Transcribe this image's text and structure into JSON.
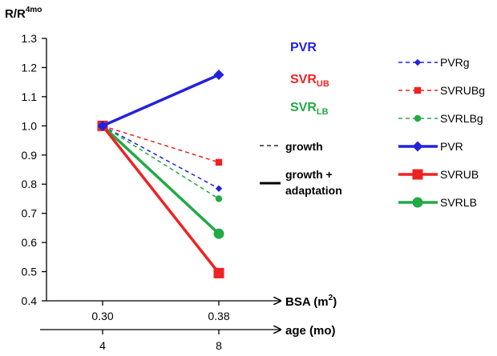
{
  "chart_data": {
    "type": "line",
    "ylabel": {
      "base": "R/R",
      "sup": "4mo"
    },
    "ylim": [
      0.4,
      1.3
    ],
    "yticks": [
      "0.4",
      "0.5",
      "0.6",
      "0.7",
      "0.8",
      "0.9",
      "1.0",
      "1.1",
      "1.2",
      "1.3"
    ],
    "x": [
      0.3,
      0.38
    ],
    "xticks": [
      "0.30",
      "0.38"
    ],
    "xlabel": {
      "base": "BSA (m",
      "sup": "2",
      "end": ")"
    },
    "x2ticks": [
      "4",
      "8"
    ],
    "x2label": "age (mo)",
    "series": [
      {
        "name": "PVRg",
        "values": [
          1.0,
          0.785
        ],
        "color": "#2222dd",
        "dashed": true,
        "marker": "diamond"
      },
      {
        "name": "SVRUBg",
        "values": [
          1.0,
          0.875
        ],
        "color": "#ee2222",
        "dashed": true,
        "marker": "square"
      },
      {
        "name": "SVRLBg",
        "values": [
          1.0,
          0.75
        ],
        "color": "#22aa44",
        "dashed": true,
        "marker": "circle"
      },
      {
        "name": "PVR",
        "values": [
          1.0,
          1.175
        ],
        "color": "#2222dd",
        "dashed": false,
        "marker": "diamond"
      },
      {
        "name": "SVRUB",
        "values": [
          1.0,
          0.495
        ],
        "color": "#ee2222",
        "dashed": false,
        "marker": "square"
      },
      {
        "name": "SVRLB",
        "values": [
          1.0,
          0.63
        ],
        "color": "#22aa44",
        "dashed": false,
        "marker": "circle"
      }
    ],
    "annotations": {
      "pvr": {
        "text": "PVR",
        "color": "#2222dd"
      },
      "svrub": {
        "base": "SVR",
        "sub": "UB",
        "color": "#ee2222"
      },
      "svrlb": {
        "base": "SVR",
        "sub": "LB",
        "color": "#22aa44"
      },
      "growth": "growth",
      "growth_adapt_1": "growth +",
      "growth_adapt_2": "adaptation"
    }
  }
}
